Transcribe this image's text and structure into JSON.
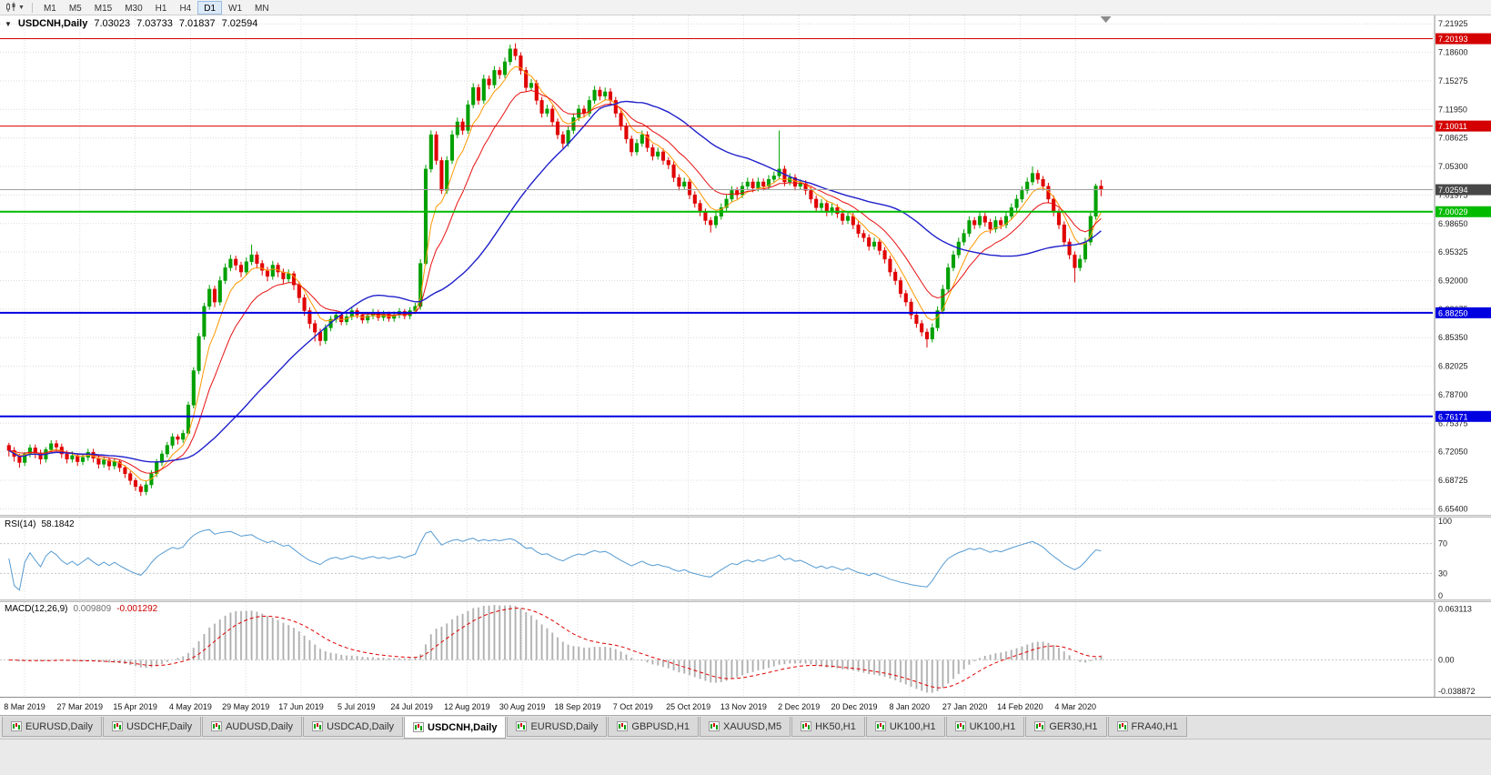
{
  "toolbar": {
    "timeframes": [
      "M1",
      "M5",
      "M15",
      "M30",
      "H1",
      "H4",
      "D1",
      "W1",
      "MN"
    ],
    "active_timeframe": "D1"
  },
  "chart": {
    "symbol_label": "USDCNH,Daily",
    "ohlc_display": {
      "open": "7.03023",
      "high": "7.03733",
      "low": "7.01837",
      "close": "7.02594"
    }
  },
  "indicators": {
    "rsi": {
      "label": "RSI(14)",
      "value": "58.1842",
      "color": "#569BD2",
      "axis_labels": [
        "100",
        "70",
        "30",
        "0"
      ],
      "levels": [
        70,
        30
      ],
      "range": [
        0,
        100
      ]
    },
    "macd": {
      "label": "MACD(12,26,9)",
      "main_value": "0.009809",
      "signal_value": "-0.001292",
      "axis_labels": [
        "0.063113",
        "0.00",
        "-0.038872"
      ],
      "histogram_color": "#C6C6C6",
      "histogram_stroke": "#9F9F9F",
      "signal_color": "#E00000"
    }
  },
  "tabs": [
    {
      "label": "EURUSD,Daily",
      "active": false
    },
    {
      "label": "USDCHF,Daily",
      "active": false
    },
    {
      "label": "AUDUSD,Daily",
      "active": false
    },
    {
      "label": "USDCAD,Daily",
      "active": false
    },
    {
      "label": "USDCNH,Daily",
      "active": true
    },
    {
      "label": "EURUSD,Daily",
      "active": false
    },
    {
      "label": "GBPUSD,H1",
      "active": false
    },
    {
      "label": "XAUUSD,M5",
      "active": false
    },
    {
      "label": "HK50,H1",
      "active": false
    },
    {
      "label": "UK100,H1",
      "active": false
    },
    {
      "label": "UK100,H1",
      "active": false
    },
    {
      "label": "GER30,H1",
      "active": false
    },
    {
      "label": "FRA40,H1",
      "active": false
    }
  ],
  "chart_data": {
    "type": "candlestick",
    "symbol": "USDCNH",
    "timeframe": "Daily",
    "last_ohlc": {
      "open": 7.03023,
      "high": 7.03733,
      "low": 7.01837,
      "close": 7.02594
    },
    "ylim": [
      6.647,
      7.229
    ],
    "grid_on": true,
    "colors": {
      "up": "#00A000",
      "down": "#E00000",
      "grid": "#DCDCDC"
    },
    "price_axis_ticks": [
      "7.21925",
      "7.18600",
      "7.15275",
      "7.11950",
      "7.08625",
      "7.05300",
      "7.01975",
      "6.98650",
      "6.95325",
      "6.92000",
      "6.88675",
      "6.85350",
      "6.82025",
      "6.78700",
      "6.75375",
      "6.72050",
      "6.68725",
      "6.65400"
    ],
    "x_axis_dates": [
      "8 Mar 2019",
      "27 Mar 2019",
      "15 Apr 2019",
      "4 May 2019",
      "29 May 2019",
      "17 Jun 2019",
      "5 Jul 2019",
      "24 Jul 2019",
      "12 Aug 2019",
      "30 Aug 2019",
      "18 Sep 2019",
      "7 Oct 2019",
      "25 Oct 2019",
      "13 Nov 2019",
      "2 Dec 2019",
      "20 Dec 2019",
      "8 Jan 2020",
      "27 Jan 2020",
      "14 Feb 2020",
      "4 Mar 2020"
    ],
    "horizontal_levels": [
      {
        "value": 7.20193,
        "label": "7.20193",
        "color": "#D40000",
        "width": 1
      },
      {
        "value": 7.10011,
        "label": "7.10011",
        "color": "#D40000",
        "width": 1
      },
      {
        "value": 7.00029,
        "label": "7.00029",
        "color": "#00BB00",
        "width": 2
      },
      {
        "value": 6.8825,
        "label": "6.88250",
        "color": "#0000E0",
        "width": 2
      },
      {
        "value": 6.76171,
        "label": "6.76171",
        "color": "#0000E0",
        "width": 2
      }
    ],
    "current_price": {
      "value": 7.02594,
      "label": "7.02594",
      "line_color": "#A0A0A0",
      "label_bg": "#474747"
    },
    "moving_averages": [
      {
        "name": "fast",
        "type": "ema",
        "period": 6,
        "color": "#FF9900",
        "width": 1
      },
      {
        "name": "medium",
        "type": "ema",
        "period": 13,
        "color": "#E81010",
        "width": 1
      },
      {
        "name": "slow",
        "type": "sma",
        "period": 34,
        "color": "#2020CC",
        "width": 1.4
      }
    ],
    "candles": [
      [
        6.728,
        6.731,
        6.715,
        6.722
      ],
      [
        6.722,
        6.726,
        6.709,
        6.715
      ],
      [
        6.715,
        6.718,
        6.702,
        6.708
      ],
      [
        6.708,
        6.72,
        6.704,
        6.718
      ],
      [
        6.718,
        6.729,
        6.714,
        6.725
      ],
      [
        6.725,
        6.729,
        6.713,
        6.719
      ],
      [
        6.719,
        6.723,
        6.706,
        6.712
      ],
      [
        6.712,
        6.726,
        6.708,
        6.723
      ],
      [
        6.723,
        6.734,
        6.719,
        6.73
      ],
      [
        6.73,
        6.734,
        6.721,
        6.726
      ],
      [
        6.726,
        6.73,
        6.713,
        6.718
      ],
      [
        6.718,
        6.722,
        6.707,
        6.712
      ],
      [
        6.712,
        6.721,
        6.708,
        6.716
      ],
      [
        6.716,
        6.719,
        6.704,
        6.709
      ],
      [
        6.709,
        6.718,
        6.705,
        6.714
      ],
      [
        6.714,
        6.724,
        6.71,
        6.72
      ],
      [
        6.72,
        6.724,
        6.708,
        6.713
      ],
      [
        6.713,
        6.717,
        6.701,
        6.706
      ],
      [
        6.706,
        6.715,
        6.702,
        6.711
      ],
      [
        6.711,
        6.714,
        6.699,
        6.704
      ],
      [
        6.704,
        6.713,
        6.7,
        6.709
      ],
      [
        6.709,
        6.711,
        6.697,
        6.702
      ],
      [
        6.702,
        6.705,
        6.69,
        6.695
      ],
      [
        6.695,
        6.698,
        6.682,
        6.687
      ],
      [
        6.687,
        6.69,
        6.675,
        6.68
      ],
      [
        6.68,
        6.683,
        6.669,
        6.674
      ],
      [
        6.674,
        6.686,
        6.67,
        6.682
      ],
      [
        6.682,
        6.699,
        6.678,
        6.695
      ],
      [
        6.695,
        6.712,
        6.691,
        6.708
      ],
      [
        6.708,
        6.722,
        6.704,
        6.718
      ],
      [
        6.718,
        6.732,
        6.714,
        6.728
      ],
      [
        6.728,
        6.742,
        6.724,
        6.738
      ],
      [
        6.738,
        6.741,
        6.729,
        6.735
      ],
      [
        6.735,
        6.746,
        6.731,
        6.742
      ],
      [
        6.742,
        6.779,
        6.74,
        6.775
      ],
      [
        6.775,
        6.819,
        6.771,
        6.815
      ],
      [
        6.815,
        6.859,
        6.811,
        6.855
      ],
      [
        6.855,
        6.894,
        6.851,
        6.89
      ],
      [
        6.89,
        6.915,
        6.886,
        6.91
      ],
      [
        6.91,
        6.914,
        6.889,
        6.895
      ],
      [
        6.895,
        6.925,
        6.891,
        6.92
      ],
      [
        6.92,
        6.94,
        6.916,
        6.935
      ],
      [
        6.935,
        6.95,
        6.931,
        6.945
      ],
      [
        6.945,
        6.949,
        6.932,
        6.938
      ],
      [
        6.938,
        6.942,
        6.924,
        6.93
      ],
      [
        6.93,
        6.947,
        6.926,
        6.942
      ],
      [
        6.942,
        6.962,
        6.938,
        6.95
      ],
      [
        6.95,
        6.954,
        6.934,
        6.94
      ],
      [
        6.94,
        6.944,
        6.926,
        6.932
      ],
      [
        6.932,
        6.936,
        6.919,
        6.925
      ],
      [
        6.925,
        6.943,
        6.921,
        6.938
      ],
      [
        6.938,
        6.941,
        6.924,
        6.93
      ],
      [
        6.93,
        6.934,
        6.916,
        6.922
      ],
      [
        6.922,
        6.933,
        6.918,
        6.928
      ],
      [
        6.928,
        6.931,
        6.909,
        6.915
      ],
      [
        6.915,
        6.919,
        6.894,
        6.9
      ],
      [
        6.9,
        6.904,
        6.879,
        6.885
      ],
      [
        6.885,
        6.889,
        6.864,
        6.87
      ],
      [
        6.87,
        6.874,
        6.849,
        6.86
      ],
      [
        6.86,
        6.864,
        6.844,
        6.85
      ],
      [
        6.85,
        6.869,
        6.846,
        6.865
      ],
      [
        6.865,
        6.879,
        6.861,
        6.875
      ],
      [
        6.875,
        6.884,
        6.871,
        6.88
      ],
      [
        6.88,
        6.883,
        6.868,
        6.872
      ],
      [
        6.872,
        6.882,
        6.868,
        6.878
      ],
      [
        6.878,
        6.889,
        6.874,
        6.885
      ],
      [
        6.885,
        6.888,
        6.876,
        6.88
      ],
      [
        6.88,
        6.883,
        6.87,
        6.874
      ],
      [
        6.874,
        6.883,
        6.87,
        6.879
      ],
      [
        6.879,
        6.887,
        6.875,
        6.883
      ],
      [
        6.883,
        6.886,
        6.873,
        6.877
      ],
      [
        6.877,
        6.885,
        6.873,
        6.881
      ],
      [
        6.881,
        6.884,
        6.872,
        6.876
      ],
      [
        6.876,
        6.884,
        6.872,
        6.88
      ],
      [
        6.88,
        6.888,
        6.876,
        6.884
      ],
      [
        6.884,
        6.887,
        6.875,
        6.879
      ],
      [
        6.879,
        6.889,
        6.875,
        6.885
      ],
      [
        6.885,
        6.894,
        6.881,
        6.89
      ],
      [
        6.89,
        6.945,
        6.886,
        6.94
      ],
      [
        6.94,
        7.055,
        6.938,
        7.05
      ],
      [
        7.05,
        7.095,
        7.046,
        7.09
      ],
      [
        7.09,
        7.094,
        7.055,
        7.06
      ],
      [
        7.06,
        7.064,
        7.021,
        7.025
      ],
      [
        7.025,
        7.065,
        7.021,
        7.06
      ],
      [
        7.06,
        7.095,
        7.056,
        7.09
      ],
      [
        7.09,
        7.11,
        7.086,
        7.105
      ],
      [
        7.105,
        7.109,
        7.09,
        7.095
      ],
      [
        7.095,
        7.13,
        7.091,
        7.125
      ],
      [
        7.125,
        7.15,
        7.121,
        7.145
      ],
      [
        7.145,
        7.149,
        7.125,
        7.13
      ],
      [
        7.13,
        7.16,
        7.126,
        7.155
      ],
      [
        7.155,
        7.159,
        7.143,
        7.148
      ],
      [
        7.148,
        7.17,
        7.144,
        7.165
      ],
      [
        7.165,
        7.169,
        7.155,
        7.16
      ],
      [
        7.16,
        7.18,
        7.156,
        7.175
      ],
      [
        7.175,
        7.195,
        7.171,
        7.19
      ],
      [
        7.19,
        7.1965,
        7.177,
        7.182
      ],
      [
        7.182,
        7.186,
        7.16,
        7.165
      ],
      [
        7.165,
        7.169,
        7.14,
        7.145
      ],
      [
        7.145,
        7.155,
        7.141,
        7.15
      ],
      [
        7.15,
        7.154,
        7.125,
        7.13
      ],
      [
        7.13,
        7.134,
        7.11,
        7.115
      ],
      [
        7.115,
        7.125,
        7.111,
        7.12
      ],
      [
        7.12,
        7.124,
        7.1,
        7.105
      ],
      [
        7.105,
        7.109,
        7.085,
        7.09
      ],
      [
        7.09,
        7.094,
        7.074,
        7.08
      ],
      [
        7.08,
        7.1,
        7.076,
        7.095
      ],
      [
        7.095,
        7.115,
        7.091,
        7.11
      ],
      [
        7.11,
        7.125,
        7.106,
        7.12
      ],
      [
        7.12,
        7.124,
        7.11,
        7.115
      ],
      [
        7.115,
        7.135,
        7.111,
        7.13
      ],
      [
        7.13,
        7.147,
        7.126,
        7.142
      ],
      [
        7.142,
        7.146,
        7.13,
        7.135
      ],
      [
        7.135,
        7.145,
        7.131,
        7.14
      ],
      [
        7.14,
        7.144,
        7.125,
        7.13
      ],
      [
        7.13,
        7.134,
        7.11,
        7.115
      ],
      [
        7.115,
        7.119,
        7.095,
        7.1
      ],
      [
        7.1,
        7.104,
        7.08,
        7.085
      ],
      [
        7.085,
        7.089,
        7.065,
        7.07
      ],
      [
        7.07,
        7.085,
        7.066,
        7.08
      ],
      [
        7.08,
        7.095,
        7.076,
        7.09
      ],
      [
        7.09,
        7.094,
        7.07,
        7.075
      ],
      [
        7.075,
        7.079,
        7.06,
        7.065
      ],
      [
        7.065,
        7.075,
        7.061,
        7.07
      ],
      [
        7.07,
        7.074,
        7.055,
        7.06
      ],
      [
        7.06,
        7.064,
        7.05,
        7.055
      ],
      [
        7.055,
        7.059,
        7.035,
        7.04
      ],
      [
        7.04,
        7.044,
        7.025,
        7.03
      ],
      [
        7.03,
        7.04,
        7.026,
        7.035
      ],
      [
        7.035,
        7.039,
        7.015,
        7.02
      ],
      [
        7.02,
        7.024,
        7.005,
        7.01
      ],
      [
        7.01,
        7.014,
        6.995,
        7.0
      ],
      [
        7.0,
        7.004,
        6.985,
        6.99
      ],
      [
        6.99,
        6.994,
        6.976,
        6.985
      ],
      [
        6.985,
        7.0,
        6.981,
        6.995
      ],
      [
        6.995,
        7.01,
        6.991,
        7.005
      ],
      [
        7.005,
        7.02,
        7.001,
        7.015
      ],
      [
        7.015,
        7.03,
        7.011,
        7.025
      ],
      [
        7.025,
        7.029,
        7.015,
        7.02
      ],
      [
        7.02,
        7.035,
        7.016,
        7.03
      ],
      [
        7.03,
        7.04,
        7.026,
        7.035
      ],
      [
        7.035,
        7.039,
        7.023,
        7.028
      ],
      [
        7.028,
        7.04,
        7.024,
        7.035
      ],
      [
        7.035,
        7.039,
        7.025,
        7.03
      ],
      [
        7.03,
        7.043,
        7.026,
        7.038
      ],
      [
        7.038,
        7.047,
        7.034,
        7.042
      ],
      [
        7.042,
        7.095,
        7.038,
        7.05
      ],
      [
        7.05,
        7.054,
        7.03,
        7.035
      ],
      [
        7.035,
        7.045,
        7.031,
        7.04
      ],
      [
        7.04,
        7.044,
        7.025,
        7.03
      ],
      [
        7.03,
        7.038,
        7.026,
        7.033
      ],
      [
        7.033,
        7.037,
        7.02,
        7.025
      ],
      [
        7.025,
        7.029,
        7.01,
        7.015
      ],
      [
        7.015,
        7.019,
        7.0,
        7.005
      ],
      [
        7.005,
        7.015,
        7.001,
        7.01
      ],
      [
        7.01,
        7.014,
        6.995,
        7.0
      ],
      [
        7.0,
        7.01,
        6.996,
        7.005
      ],
      [
        7.005,
        7.009,
        6.993,
        6.998
      ],
      [
        6.998,
        7.002,
        6.985,
        6.99
      ],
      [
        6.99,
        7.0,
        6.986,
        6.995
      ],
      [
        6.995,
        6.999,
        6.98,
        6.985
      ],
      [
        6.985,
        6.989,
        6.97,
        6.975
      ],
      [
        6.975,
        6.979,
        6.965,
        6.97
      ],
      [
        6.97,
        6.974,
        6.955,
        6.96
      ],
      [
        6.96,
        6.97,
        6.956,
        6.965
      ],
      [
        6.965,
        6.969,
        6.95,
        6.955
      ],
      [
        6.955,
        6.959,
        6.94,
        6.945
      ],
      [
        6.945,
        6.949,
        6.925,
        6.93
      ],
      [
        6.93,
        6.934,
        6.915,
        6.92
      ],
      [
        6.92,
        6.924,
        6.9,
        6.905
      ],
      [
        6.905,
        6.909,
        6.89,
        6.895
      ],
      [
        6.895,
        6.899,
        6.875,
        6.88
      ],
      [
        6.88,
        6.884,
        6.865,
        6.87
      ],
      [
        6.87,
        6.874,
        6.855,
        6.86
      ],
      [
        6.86,
        6.864,
        6.842,
        6.852
      ],
      [
        6.852,
        6.87,
        6.848,
        6.865
      ],
      [
        6.865,
        6.89,
        6.861,
        6.885
      ],
      [
        6.885,
        6.915,
        6.881,
        6.91
      ],
      [
        6.91,
        6.94,
        6.906,
        6.935
      ],
      [
        6.935,
        6.955,
        6.931,
        6.95
      ],
      [
        6.95,
        6.97,
        6.946,
        6.965
      ],
      [
        6.965,
        6.98,
        6.961,
        6.975
      ],
      [
        6.975,
        6.995,
        6.971,
        6.99
      ],
      [
        6.99,
        6.994,
        6.98,
        6.985
      ],
      [
        6.985,
        7.0,
        6.981,
        6.995
      ],
      [
        6.995,
        6.999,
        6.983,
        6.988
      ],
      [
        6.988,
        6.992,
        6.975,
        6.98
      ],
      [
        6.98,
        6.995,
        6.976,
        6.99
      ],
      [
        6.99,
        6.994,
        6.98,
        6.985
      ],
      [
        6.985,
        7.0,
        6.981,
        6.995
      ],
      [
        6.995,
        7.01,
        6.991,
        7.005
      ],
      [
        7.005,
        7.02,
        7.001,
        7.015
      ],
      [
        7.015,
        7.03,
        7.011,
        7.025
      ],
      [
        7.025,
        7.04,
        7.021,
        7.035
      ],
      [
        7.035,
        7.053,
        7.031,
        7.045
      ],
      [
        7.045,
        7.049,
        7.033,
        7.038
      ],
      [
        7.038,
        7.042,
        7.025,
        7.03
      ],
      [
        7.03,
        7.034,
        7.01,
        7.015
      ],
      [
        7.015,
        7.019,
        6.995,
        7.0
      ],
      [
        7.0,
        7.004,
        6.98,
        6.985
      ],
      [
        6.985,
        6.989,
        6.96,
        6.965
      ],
      [
        6.965,
        6.969,
        6.945,
        6.95
      ],
      [
        6.95,
        6.954,
        6.918,
        6.935
      ],
      [
        6.935,
        6.95,
        6.931,
        6.945
      ],
      [
        6.945,
        6.97,
        6.941,
        6.965
      ],
      [
        6.965,
        6.999,
        6.961,
        6.995
      ],
      [
        6.995,
        7.033,
        6.991,
        7.0302
      ],
      [
        7.0302,
        7.03733,
        7.01837,
        7.02594
      ]
    ]
  }
}
